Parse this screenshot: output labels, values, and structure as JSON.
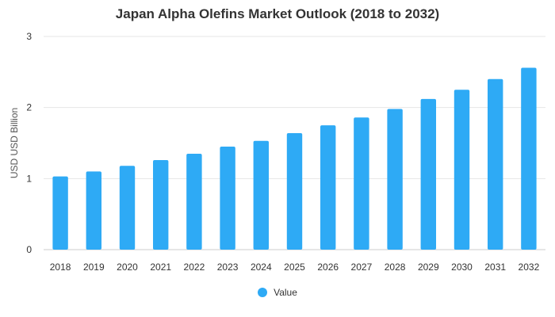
{
  "chart_data": {
    "type": "bar",
    "title": "Japan Alpha Olefins Market Outlook (2018 to 2032)",
    "xlabel": "",
    "ylabel": "USD USD Billion",
    "categories": [
      "2018",
      "2019",
      "2020",
      "2021",
      "2022",
      "2023",
      "2024",
      "2025",
      "2026",
      "2027",
      "2028",
      "2029",
      "2030",
      "2031",
      "2032"
    ],
    "series": [
      {
        "name": "Value",
        "color": "#2eaaf5",
        "values": [
          1.03,
          1.1,
          1.18,
          1.26,
          1.35,
          1.45,
          1.53,
          1.64,
          1.75,
          1.86,
          1.98,
          2.12,
          2.25,
          2.4,
          2.56
        ]
      }
    ],
    "ylim": [
      0,
      3
    ],
    "yticks": [
      0,
      1,
      2,
      3
    ],
    "grid": true,
    "legend_position": "bottom"
  }
}
